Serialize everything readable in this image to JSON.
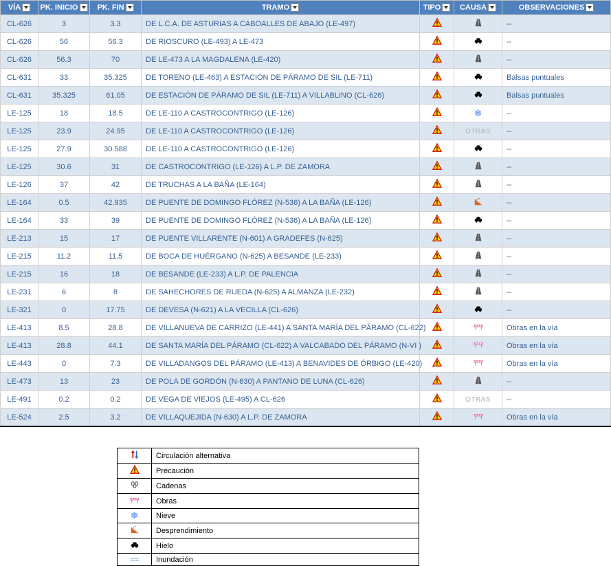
{
  "table": {
    "headers": {
      "via": "VÍA",
      "pk_inicio": "PK. INICIO",
      "pk_fin": "PK. FIN",
      "tramo": "TRAMO",
      "tipo": "TIPO",
      "causa": "CAUSA",
      "observaciones": "OBSERVACIONES"
    },
    "col_widths": {
      "via": 55,
      "pki": 75,
      "pkf": 75,
      "tramo": 400,
      "tipo": 50,
      "causa": 70,
      "obs": 150
    },
    "row_colors": {
      "even": "#dce6f1",
      "odd": "#ffffff"
    },
    "header_bg": "#4f81bd",
    "header_fg": "#ffffff",
    "text_color": "#366092",
    "rows": [
      {
        "via": "CL-626",
        "pki": "3",
        "pkf": "3.3",
        "tramo": "DE L.C.A. DE ASTURIAS A CABOALLES DE ABAJO (LE-497)",
        "tipo": "warn",
        "causa": "road",
        "obs": "--"
      },
      {
        "via": "CL-626",
        "pki": "56",
        "pkf": "56.3",
        "tramo": "DE RIOSCURO (LE-493) A LE-473",
        "tipo": "warn",
        "causa": "ice",
        "obs": "--"
      },
      {
        "via": "CL-626",
        "pki": "56.3",
        "pkf": "70",
        "tramo": "DE LE-473 A LA MAGDALENA (LE-420)",
        "tipo": "warn",
        "causa": "road",
        "obs": "--"
      },
      {
        "via": "CL-631",
        "pki": "33",
        "pkf": "35.325",
        "tramo": "DE TORENO (LE-463) A ESTACIÓN DE PÁRAMO DE SIL (LE-711)",
        "tipo": "warn",
        "causa": "ice",
        "obs": "Balsas puntuales"
      },
      {
        "via": "CL-631",
        "pki": "35.325",
        "pkf": "61.05",
        "tramo": "DE ESTACIÓN DE PÁRAMO DE SIL (LE-711) A VILLABLINO (CL-626)",
        "tipo": "warn",
        "causa": "ice",
        "obs": "Balsas puntuales"
      },
      {
        "via": "LE-125",
        "pki": "18",
        "pkf": "18.5",
        "tramo": "DE LE-110 A CASTROCONTRIGO (LE-126)",
        "tipo": "warn",
        "causa": "snow",
        "obs": "--"
      },
      {
        "via": "LE-125",
        "pki": "23.9",
        "pkf": "24.95",
        "tramo": "DE LE-110 A CASTROCONTRIGO (LE-126)",
        "tipo": "warn",
        "causa": "otras",
        "obs": "--"
      },
      {
        "via": "LE-125",
        "pki": "27.9",
        "pkf": "30.588",
        "tramo": "DE LE-110 A CASTROCONTRIGO (LE-126)",
        "tipo": "warn",
        "causa": "ice",
        "obs": "--"
      },
      {
        "via": "LE-125",
        "pki": "30.6",
        "pkf": "31",
        "tramo": "DE CASTROCONTRIGO (LE-126) A L.P. DE ZAMORA",
        "tipo": "warn",
        "causa": "road",
        "obs": "--"
      },
      {
        "via": "LE-126",
        "pki": "37",
        "pkf": "42",
        "tramo": "DE TRUCHAS A LA BAÑA (LE-164)",
        "tipo": "warn",
        "causa": "road",
        "obs": "--"
      },
      {
        "via": "LE-164",
        "pki": "0.5",
        "pkf": "42.935",
        "tramo": "DE PUENTE DE DOMINGO FLÓREZ (N-536) A LA BAÑA (LE-126)",
        "tipo": "warn",
        "causa": "slide",
        "obs": "--"
      },
      {
        "via": "LE-164",
        "pki": "33",
        "pkf": "39",
        "tramo": "DE PUENTE DE DOMINGO FLÓREZ (N-536) A LA BAÑA (LE-126)",
        "tipo": "warn",
        "causa": "ice",
        "obs": "--"
      },
      {
        "via": "LE-213",
        "pki": "15",
        "pkf": "17",
        "tramo": "DE PUENTE VILLARENTE (N-601) A GRADEFES (N-625)",
        "tipo": "warn",
        "causa": "road",
        "obs": "--"
      },
      {
        "via": "LE-215",
        "pki": "11.2",
        "pkf": "11.5",
        "tramo": "DE BOCA DE HUÉRGANO (N-625) A BESANDE (LE-233)",
        "tipo": "warn",
        "causa": "road",
        "obs": "--"
      },
      {
        "via": "LE-215",
        "pki": "16",
        "pkf": "18",
        "tramo": "DE BESANDE (LE-233) A L.P. DE PALENCIA",
        "tipo": "warn",
        "causa": "road",
        "obs": "--"
      },
      {
        "via": "LE-231",
        "pki": "6",
        "pkf": "8",
        "tramo": "DE SAHECHORES DE RUEDA (N-625) A ALMANZA (LE-232)",
        "tipo": "warn",
        "causa": "road",
        "obs": "--"
      },
      {
        "via": "LE-321",
        "pki": "0",
        "pkf": "17.75",
        "tramo": "DE DEVESA (N-621) A LA VECILLA (CL-626)",
        "tipo": "warn",
        "causa": "ice",
        "obs": "--"
      },
      {
        "via": "LE-413",
        "pki": "8.5",
        "pkf": "28.8",
        "tramo": "DE VILLANUEVA DE CARRIZO (LE-441) A SANTA MARÍA DEL PÁRAMO (CL-622)",
        "tipo": "warn",
        "causa": "obras",
        "obs": "Obras en la vía"
      },
      {
        "via": "LE-413",
        "pki": "28.8",
        "pkf": "44.1",
        "tramo": "DE SANTA MARÍA DEL PÁRAMO (CL-622) A VALCABADO DEL PÁRAMO (N-VI )",
        "tipo": "warn",
        "causa": "obras",
        "obs": "Obras en la vía"
      },
      {
        "via": "LE-443",
        "pki": "0",
        "pkf": "7.3",
        "tramo": "DE VILLADANGOS DEL PÁRAMO (LE-413) A BENAVIDES DE ÓRBIGO (LE-420)",
        "tipo": "warn",
        "causa": "obras",
        "obs": "Obras en la vía"
      },
      {
        "via": "LE-473",
        "pki": "13",
        "pkf": "23",
        "tramo": "DE POLA DE GORDÓN (N-630) A PANTANO DE LUNA (CL-626)",
        "tipo": "warn",
        "causa": "road",
        "obs": "--"
      },
      {
        "via": "LE-491",
        "pki": "0.2",
        "pkf": "0.2",
        "tramo": "DE VEGA DE VIEJOS (LE-495) A CL-626",
        "tipo": "warn",
        "causa": "otras",
        "obs": "--"
      },
      {
        "via": "LE-524",
        "pki": "2.5",
        "pkf": "3.2",
        "tramo": "DE VILLAQUEJIDA (N-630) A L.P. DE ZAMORA",
        "tipo": "warn",
        "causa": "obras",
        "obs": "Obras en la vía"
      }
    ]
  },
  "legend": {
    "items": [
      {
        "icon": "alt",
        "label": "Circulación alternativa"
      },
      {
        "icon": "warn",
        "label": "Precaución"
      },
      {
        "icon": "chain",
        "label": "Cadenas"
      },
      {
        "icon": "obras",
        "label": "Obras"
      },
      {
        "icon": "snow",
        "label": "Nieve"
      },
      {
        "icon": "slide",
        "label": "Desprendimiento"
      },
      {
        "icon": "ice",
        "label": "Hielo"
      },
      {
        "icon": "flood",
        "label": "Inundación"
      }
    ]
  },
  "icons": {
    "warn": {
      "type": "svg-triangle",
      "fill": "#ffcc00",
      "stroke": "#d40000",
      "bang": "#000000"
    },
    "road": {
      "type": "svg-road",
      "fill": "#555555"
    },
    "ice": {
      "type": "svg-car",
      "fill": "#000000"
    },
    "snow": {
      "type": "text",
      "text": "❄",
      "color": "#7da7ff"
    },
    "otras": {
      "type": "text",
      "text": "OTRAS",
      "color": "#b0b0b0"
    },
    "slide": {
      "type": "svg-slide",
      "fill": "#d86a2c"
    },
    "obras": {
      "type": "svg-barrier",
      "fill": "#e57ab5"
    },
    "alt": {
      "type": "svg-arrows",
      "up": "#d40000",
      "down": "#2a64d4"
    },
    "chain": {
      "type": "svg-chain",
      "fill": "#666666"
    },
    "flood": {
      "type": "text",
      "text": "≈≈",
      "color": "#3a8fd4"
    }
  }
}
